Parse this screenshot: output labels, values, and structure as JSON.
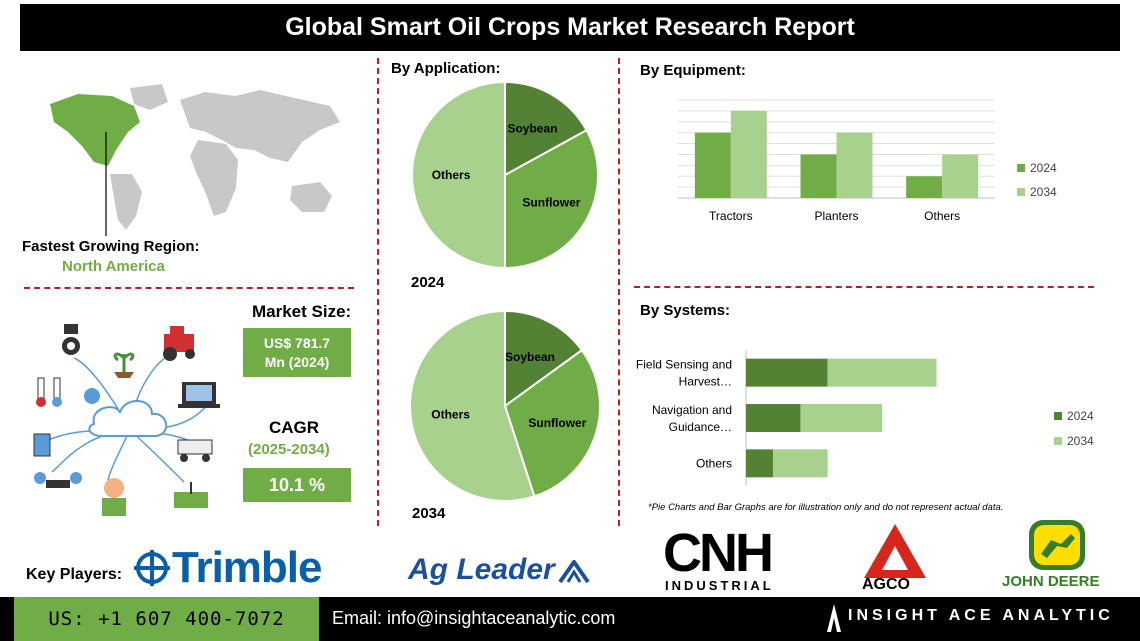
{
  "title": "Global Smart Oil Crops Market Research Report",
  "region": {
    "label": "Fastest Growing Region:",
    "value": "North America"
  },
  "market_size": {
    "label": "Market Size:",
    "value_line1": "US$ 781.7",
    "value_line2": "Mn (2024)"
  },
  "cagr": {
    "label": "CAGR",
    "period": "(2025-2034)",
    "value": "10.1 %"
  },
  "application": {
    "title": "By Application:"
  },
  "equipment": {
    "title": "By  Equipment:"
  },
  "systems": {
    "title": "By Systems:"
  },
  "note": "*Pie Charts and Bar Graphs are for illustration only and do not represent actual data.",
  "key_players": {
    "label": "Key Players:",
    "items": [
      "Trimble",
      "Ag Leader",
      "CNH",
      "INDUSTRIAL",
      "AGCO",
      "JOHN DEERE"
    ]
  },
  "footer": {
    "phone": "US: +1 607 400-7072",
    "email": "Email: info@insightaceanalytic.com",
    "brand": "INSIGHT ACE ANALYTIC"
  },
  "colors": {
    "green": "#70ad47",
    "dark_green": "#548235",
    "light_green": "#a9d18e",
    "pie_light": "#8fc46e",
    "dash_red": "#b22222"
  },
  "chart_data": [
    {
      "type": "pie",
      "year_label": "2024",
      "slices": [
        {
          "label": "Soybean",
          "value": 17
        },
        {
          "label": "Sunflower",
          "value": 33
        },
        {
          "label": "Others",
          "value": 50
        }
      ]
    },
    {
      "type": "pie",
      "year_label": "2034",
      "slices": [
        {
          "label": "Soybean",
          "value": 15
        },
        {
          "label": "Sunflower",
          "value": 30
        },
        {
          "label": "Others",
          "value": 55
        }
      ]
    },
    {
      "type": "bar",
      "categories": [
        "Tractors",
        "Planters",
        "Others"
      ],
      "series": [
        {
          "name": "2024",
          "values": [
            3,
            2,
            1
          ]
        },
        {
          "name": "2034",
          "values": [
            4,
            3,
            2
          ]
        }
      ],
      "ylim": [
        0,
        4.5
      ],
      "grid": true,
      "legend": "right"
    },
    {
      "type": "bar",
      "orientation": "horizontal",
      "stacked": true,
      "categories": [
        "Field Sensing and Harvest…",
        "Navigation and Guidance…",
        "Others"
      ],
      "series": [
        {
          "name": "2024",
          "values": [
            1.5,
            1,
            0.5
          ]
        },
        {
          "name": "2034",
          "values": [
            2,
            1.5,
            1
          ]
        }
      ],
      "xlim": [
        0,
        4.5
      ],
      "legend": "right"
    }
  ]
}
